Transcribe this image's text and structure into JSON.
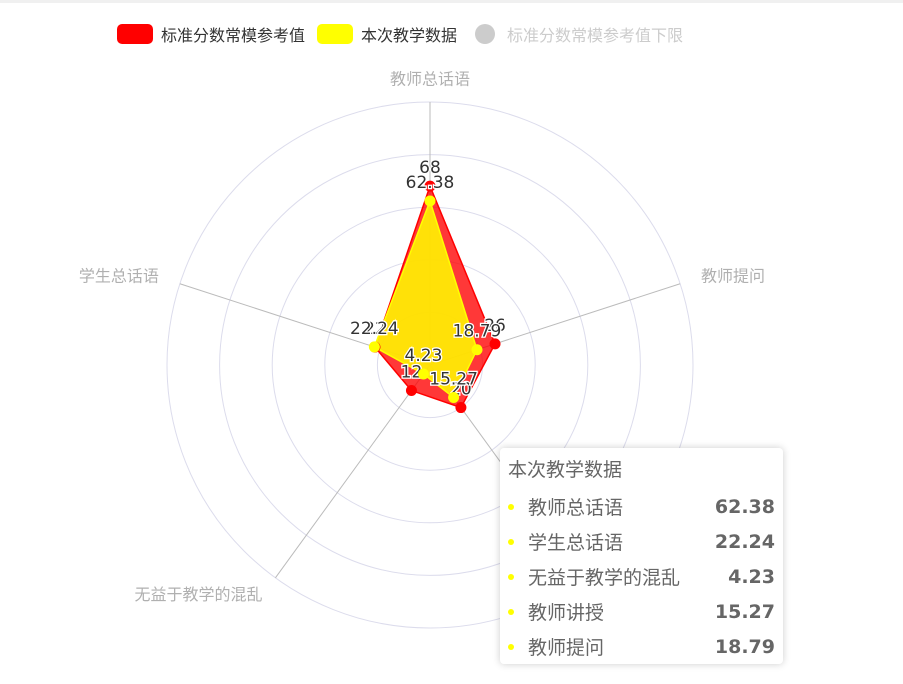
{
  "legend": [
    {
      "label": "标准分数常模参考值",
      "color": "#ff0000",
      "active": true
    },
    {
      "label": "本次教学数据",
      "color": "#ffff00",
      "active": true
    },
    {
      "label": "标准分数常模参考值下限",
      "color": "#cccccc",
      "active": false
    }
  ],
  "chart_data": {
    "type": "radar",
    "max": 100,
    "indicators": [
      "教师总话语",
      "教师提问",
      "教师讲授",
      "无益于教学的混乱",
      "学生总话语"
    ],
    "series": [
      {
        "name": "标准分数常模参考值",
        "color": "#ff0000",
        "values": [
          68,
          26,
          20,
          12,
          22
        ]
      },
      {
        "name": "本次教学数据",
        "color": "#ffff00",
        "values": [
          62.38,
          18.79,
          15.27,
          4.23,
          22.24
        ]
      }
    ]
  },
  "tooltip": {
    "title": "本次教学数据",
    "rows": [
      {
        "name": "教师总话语",
        "value": "62.38"
      },
      {
        "name": "学生总话语",
        "value": "22.24"
      },
      {
        "name": "无益于教学的混乱",
        "value": "4.23"
      },
      {
        "name": "教师讲授",
        "value": "15.27"
      },
      {
        "name": "教师提问",
        "value": "18.79"
      }
    ],
    "dot_color": "#ffff00"
  }
}
